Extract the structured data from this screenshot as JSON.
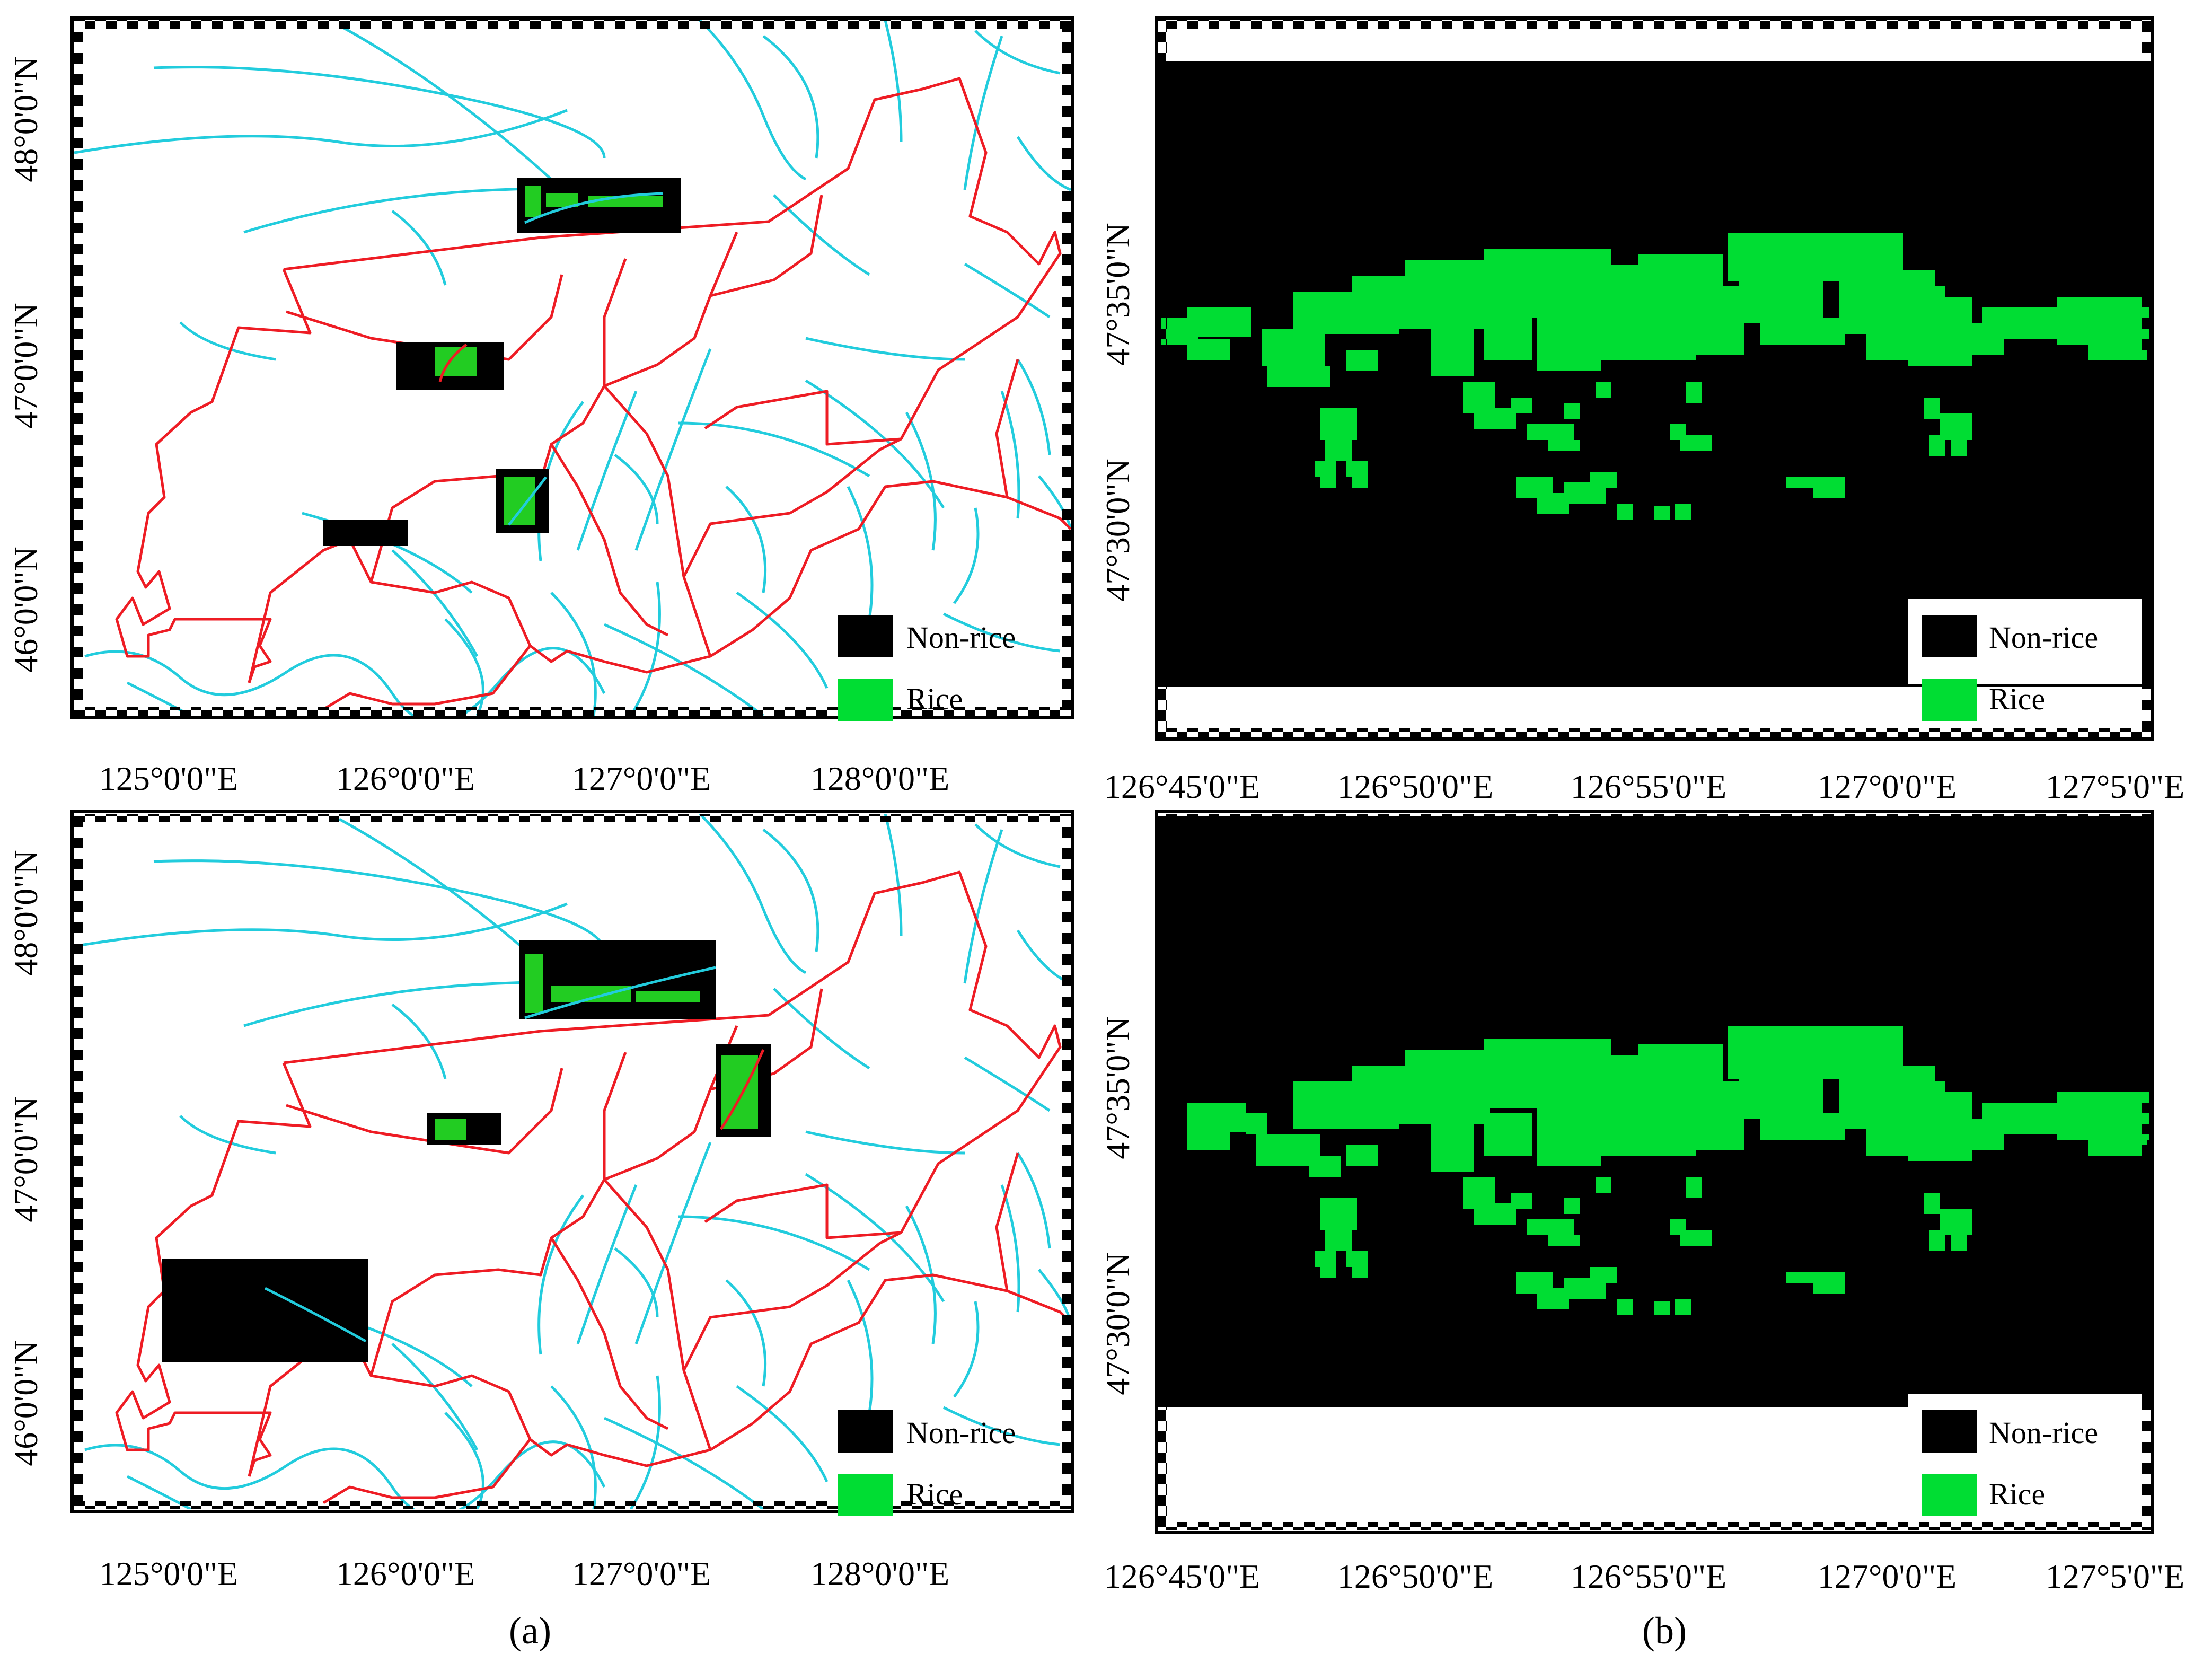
{
  "panel_labels": {
    "a": "(a)",
    "b": "(b)"
  },
  "legend": {
    "non_rice": "Non-rice",
    "rice": "Rice"
  },
  "colors": {
    "non_rice": "#000000",
    "rice": "#00dd33",
    "rice_patch": "#22cc22",
    "river": "#22ccdd",
    "boundary": "#ee1c24"
  },
  "overview_axes": {
    "x_ticks": [
      "125°0'0\"E",
      "126°0'0\"E",
      "127°0'0\"E",
      "128°0'0\"E"
    ],
    "y_ticks": [
      "48°0'0\"N",
      "47°0'0\"N",
      "46°0'0\"N"
    ]
  },
  "detail_axes": {
    "x_ticks": [
      "126°45'0\"E",
      "126°50'0\"E",
      "126°55'0\"E",
      "127°0'0\"E",
      "127°5'0\"E"
    ],
    "y_ticks": [
      "47°35'0\"N",
      "47°30'0\"N"
    ]
  }
}
